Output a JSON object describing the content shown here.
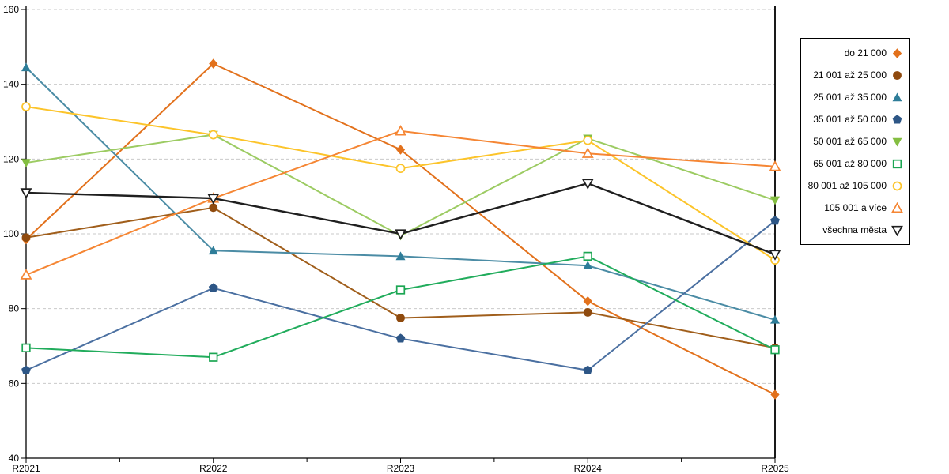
{
  "chart_data": {
    "type": "line",
    "title": "",
    "xlabel": "",
    "ylabel": "",
    "categories": [
      "R2021",
      "R2022",
      "R2023",
      "R2024",
      "R2025"
    ],
    "ylim": [
      40,
      160
    ],
    "yticks": [
      40,
      60,
      80,
      100,
      120,
      140,
      160
    ],
    "grid": "horizontal-dashed",
    "legend_position": "right",
    "gridline_color": "#C9C9C9",
    "axis_color": "#000000",
    "series": [
      {
        "name": "do 21 000",
        "color": "#E2711C",
        "marker_color": "#E2711C",
        "marker": "diamond",
        "fill": "solid",
        "values": [
          98.5,
          145.5,
          122.5,
          82,
          57
        ]
      },
      {
        "name": "21 001 až 25 000",
        "color": "#A05E1B",
        "marker_color": "#8F4A0E",
        "marker": "circle",
        "fill": "solid",
        "values": [
          99,
          107,
          77.5,
          79,
          69.5
        ]
      },
      {
        "name": "25 001 až 35 000",
        "color": "#4B8CA5",
        "marker_color": "#2E7D99",
        "marker": "triangle-up",
        "fill": "solid",
        "values": [
          144.5,
          95.5,
          94,
          91.5,
          77
        ]
      },
      {
        "name": "35 001 až 50 000",
        "color": "#4B70A1",
        "marker_color": "#2D5686",
        "marker": "pentagon",
        "fill": "solid",
        "values": [
          63.5,
          85.5,
          72,
          63.5,
          103.5
        ]
      },
      {
        "name": "50 001 až 65 000",
        "color": "#9CCB62",
        "marker_color": "#84BE41",
        "marker": "triangle-down",
        "fill": "solid",
        "values": [
          119,
          126.5,
          99.5,
          125.5,
          109
        ]
      },
      {
        "name": "65 001 až 80 000",
        "color": "#21AC5C",
        "marker_color": "#1CA653",
        "marker": "square",
        "fill": "open",
        "values": [
          69.5,
          67,
          85,
          94,
          69
        ]
      },
      {
        "name": "80 001 až 105 000",
        "color": "#FCC42A",
        "marker_color": "#FCC42A",
        "marker": "circle",
        "fill": "open",
        "values": [
          134,
          126.5,
          117.5,
          125,
          93
        ]
      },
      {
        "name": "105 001 a více",
        "color": "#F58634",
        "marker_color": "#F58634",
        "marker": "triangle-up",
        "fill": "open",
        "values": [
          89,
          109.5,
          127.5,
          121.5,
          118
        ]
      },
      {
        "name": "všechna města",
        "color": "#1F1F1F",
        "marker_color": "#1F1F1F",
        "marker": "triangle-down",
        "fill": "open",
        "values": [
          111,
          109.5,
          100,
          113.5,
          94.5
        ]
      }
    ]
  }
}
